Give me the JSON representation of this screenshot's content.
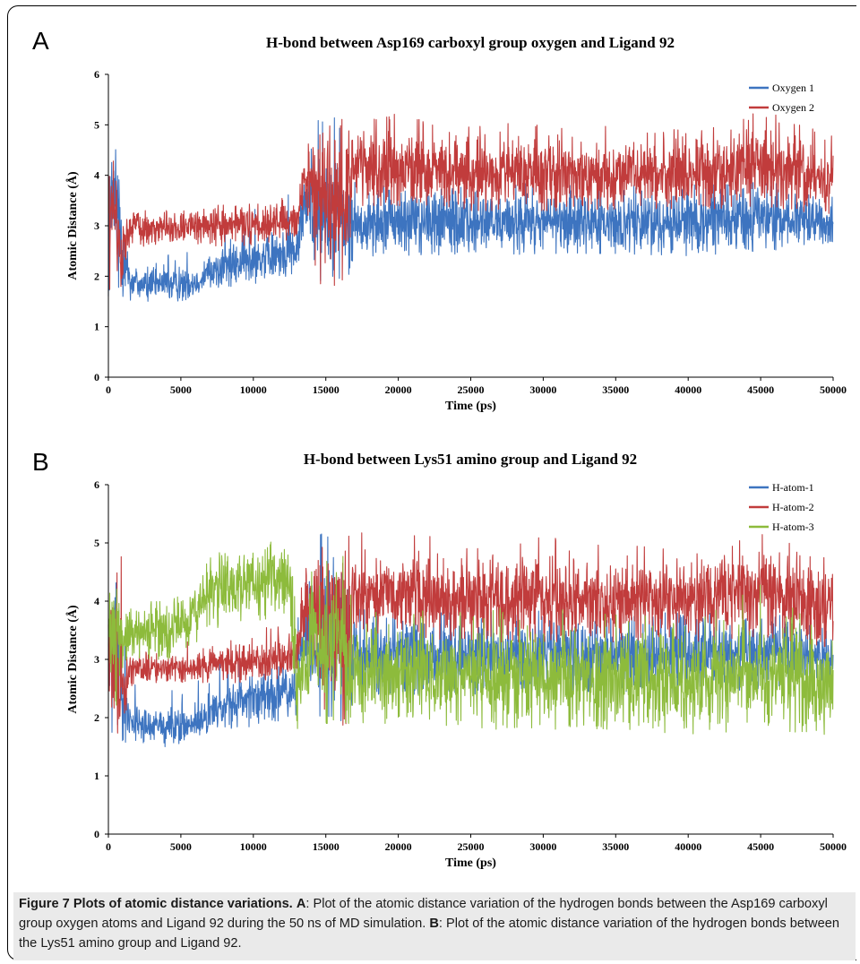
{
  "figure": {
    "caption_label": "Figure 7 Plots of atomic distance variations.",
    "caption_a_letter": "A",
    "caption_a_text": ": Plot of the atomic distance variation of the hydrogen bonds between the Asp169 carboxyl group oxygen atoms and Ligand 92 during the 50 ns of MD simulation.",
    "caption_b_letter": "B",
    "caption_b_text": ": Plot of the atomic distance variation of the hydrogen bonds between the Lys51 amino group and Ligand 92."
  },
  "chart_data": [
    {
      "panel": "A",
      "type": "line",
      "title": "H-bond between Asp169 carboxyl group oxygen and Ligand 92",
      "xlabel": "Time (ps)",
      "ylabel": "Atomic Distance (Å)",
      "xlim": [
        0,
        50000
      ],
      "ylim": [
        0,
        6
      ],
      "xticks": [
        0,
        5000,
        10000,
        15000,
        20000,
        25000,
        30000,
        35000,
        40000,
        45000,
        50000
      ],
      "yticks": [
        0,
        1,
        2,
        3,
        4,
        5,
        6
      ],
      "legend": "top-right",
      "series": [
        {
          "name": "Oxygen 1",
          "color": "#3d74c0",
          "x": [
            0,
            500,
            1000,
            1500,
            2500,
            5000,
            6000,
            7000,
            9000,
            11000,
            13000,
            13500,
            14500,
            15500,
            16500,
            17000,
            20000,
            25000,
            30000,
            35000,
            40000,
            45000,
            50000
          ],
          "mean": [
            3.2,
            3.4,
            2.6,
            1.9,
            1.85,
            1.85,
            1.9,
            2.1,
            2.25,
            2.4,
            2.5,
            3.5,
            3.2,
            3.3,
            3.1,
            3.05,
            3.1,
            3.05,
            3.1,
            3.05,
            3.1,
            3.15,
            3.05
          ],
          "min": [
            1.6,
            1.7,
            1.6,
            1.5,
            1.5,
            1.5,
            1.6,
            1.7,
            1.8,
            1.9,
            2.0,
            2.8,
            1.9,
            2.0,
            1.9,
            2.4,
            2.4,
            2.4,
            2.45,
            2.45,
            2.4,
            2.5,
            2.6
          ],
          "max": [
            4.1,
            4.7,
            4.3,
            2.6,
            2.5,
            2.5,
            2.7,
            2.9,
            3.3,
            3.5,
            3.7,
            4.0,
            5.2,
            5.2,
            4.8,
            3.9,
            3.8,
            3.8,
            3.85,
            3.8,
            3.8,
            3.9,
            3.6
          ]
        },
        {
          "name": "Oxygen 2",
          "color": "#c13c3c",
          "x": [
            0,
            500,
            1000,
            1500,
            2500,
            5000,
            7000,
            9000,
            11000,
            13000,
            13500,
            14500,
            15500,
            16500,
            17000,
            20000,
            25000,
            30000,
            35000,
            40000,
            45000,
            50000
          ],
          "mean": [
            2.9,
            3.2,
            2.4,
            2.95,
            2.95,
            2.95,
            2.95,
            3.0,
            3.05,
            3.1,
            3.9,
            3.6,
            3.6,
            3.5,
            4.1,
            4.1,
            4.05,
            4.05,
            4.0,
            4.0,
            4.2,
            3.9
          ],
          "min": [
            1.6,
            1.7,
            1.7,
            2.5,
            2.6,
            2.6,
            2.6,
            2.6,
            2.65,
            2.7,
            3.4,
            1.8,
            1.8,
            1.9,
            3.4,
            3.4,
            3.3,
            3.3,
            3.3,
            3.3,
            3.4,
            3.2
          ],
          "max": [
            3.9,
            4.5,
            4.9,
            3.3,
            3.3,
            3.3,
            3.4,
            3.5,
            3.6,
            3.7,
            4.6,
            4.9,
            5.0,
            5.2,
            5.3,
            5.2,
            5.0,
            5.1,
            5.0,
            4.9,
            5.3,
            4.8
          ]
        }
      ]
    },
    {
      "panel": "B",
      "type": "line",
      "title": "H-bond between Lys51 amino group and Ligand 92",
      "xlabel": "Time (ps)",
      "ylabel": "Atomic Distance (Å)",
      "xlim": [
        0,
        50000
      ],
      "ylim": [
        0,
        6
      ],
      "xticks": [
        0,
        5000,
        10000,
        15000,
        20000,
        25000,
        30000,
        35000,
        40000,
        45000,
        50000
      ],
      "yticks": [
        0,
        1,
        2,
        3,
        4,
        5,
        6
      ],
      "legend": "top-right",
      "series": [
        {
          "name": "H-atom-1",
          "color": "#3d74c0",
          "x": [
            0,
            500,
            1000,
            1500,
            2500,
            5000,
            6000,
            7000,
            9000,
            11000,
            13000,
            13500,
            14500,
            15500,
            16500,
            17000,
            20000,
            25000,
            30000,
            35000,
            40000,
            45000,
            50000
          ],
          "mean": [
            3.2,
            3.4,
            2.6,
            1.9,
            1.85,
            1.85,
            1.9,
            2.1,
            2.25,
            2.4,
            2.5,
            3.5,
            3.2,
            3.3,
            3.1,
            3.05,
            3.1,
            3.05,
            3.1,
            3.05,
            3.1,
            3.15,
            3.05
          ],
          "min": [
            1.6,
            1.7,
            1.6,
            1.5,
            1.5,
            1.5,
            1.6,
            1.7,
            1.8,
            1.9,
            2.0,
            2.8,
            1.9,
            2.0,
            1.9,
            2.4,
            2.4,
            2.4,
            2.45,
            2.45,
            2.4,
            2.5,
            2.6
          ],
          "max": [
            4.1,
            4.7,
            4.3,
            2.6,
            2.5,
            2.5,
            2.7,
            2.9,
            3.3,
            3.5,
            3.7,
            4.0,
            5.2,
            5.2,
            4.8,
            3.9,
            3.8,
            3.8,
            3.85,
            3.8,
            3.8,
            3.9,
            3.6
          ]
        },
        {
          "name": "H-atom-2",
          "color": "#c13c3c",
          "x": [
            0,
            500,
            1000,
            1500,
            2500,
            5000,
            7000,
            9000,
            11000,
            13000,
            13500,
            14500,
            15500,
            16500,
            17000,
            20000,
            25000,
            30000,
            35000,
            40000,
            45000,
            50000
          ],
          "mean": [
            2.9,
            3.2,
            2.4,
            2.85,
            2.85,
            2.85,
            2.9,
            2.95,
            3.0,
            3.1,
            3.9,
            3.6,
            3.6,
            3.5,
            4.1,
            4.1,
            4.05,
            4.05,
            4.0,
            4.0,
            4.2,
            3.9
          ],
          "min": [
            1.6,
            1.7,
            1.7,
            2.5,
            2.6,
            2.6,
            2.6,
            2.6,
            2.65,
            2.7,
            3.4,
            1.8,
            1.8,
            1.9,
            3.4,
            3.4,
            3.3,
            3.3,
            3.3,
            3.3,
            3.4,
            3.2
          ],
          "max": [
            3.9,
            4.5,
            4.9,
            3.2,
            3.2,
            3.3,
            3.4,
            3.5,
            3.6,
            3.7,
            4.6,
            4.9,
            5.0,
            5.2,
            5.3,
            5.2,
            5.0,
            5.1,
            5.0,
            4.9,
            5.3,
            4.8
          ]
        },
        {
          "name": "H-atom-3",
          "color": "#8dbb3c",
          "x": [
            0,
            500,
            1000,
            2000,
            4000,
            5500,
            7000,
            9000,
            11000,
            12500,
            13000,
            14000,
            15000,
            16000,
            17000,
            20000,
            25000,
            30000,
            35000,
            40000,
            45000,
            50000
          ],
          "mean": [
            3.5,
            3.3,
            3.4,
            3.45,
            3.5,
            3.6,
            4.2,
            4.3,
            4.35,
            4.3,
            2.6,
            3.0,
            3.3,
            3.2,
            2.7,
            2.7,
            2.65,
            2.7,
            2.65,
            2.6,
            2.7,
            2.55
          ],
          "min": [
            1.7,
            2.0,
            2.9,
            3.0,
            3.0,
            3.1,
            3.5,
            3.6,
            3.7,
            3.6,
            1.8,
            1.8,
            1.9,
            1.9,
            1.9,
            1.9,
            1.8,
            1.8,
            1.8,
            1.7,
            1.8,
            1.7
          ],
          "max": [
            4.1,
            4.3,
            4.0,
            4.0,
            4.4,
            4.0,
            4.8,
            4.9,
            5.0,
            5.1,
            3.7,
            4.6,
            5.1,
            5.0,
            3.9,
            3.9,
            3.8,
            4.0,
            3.8,
            3.7,
            4.4,
            3.4
          ]
        }
      ]
    }
  ]
}
